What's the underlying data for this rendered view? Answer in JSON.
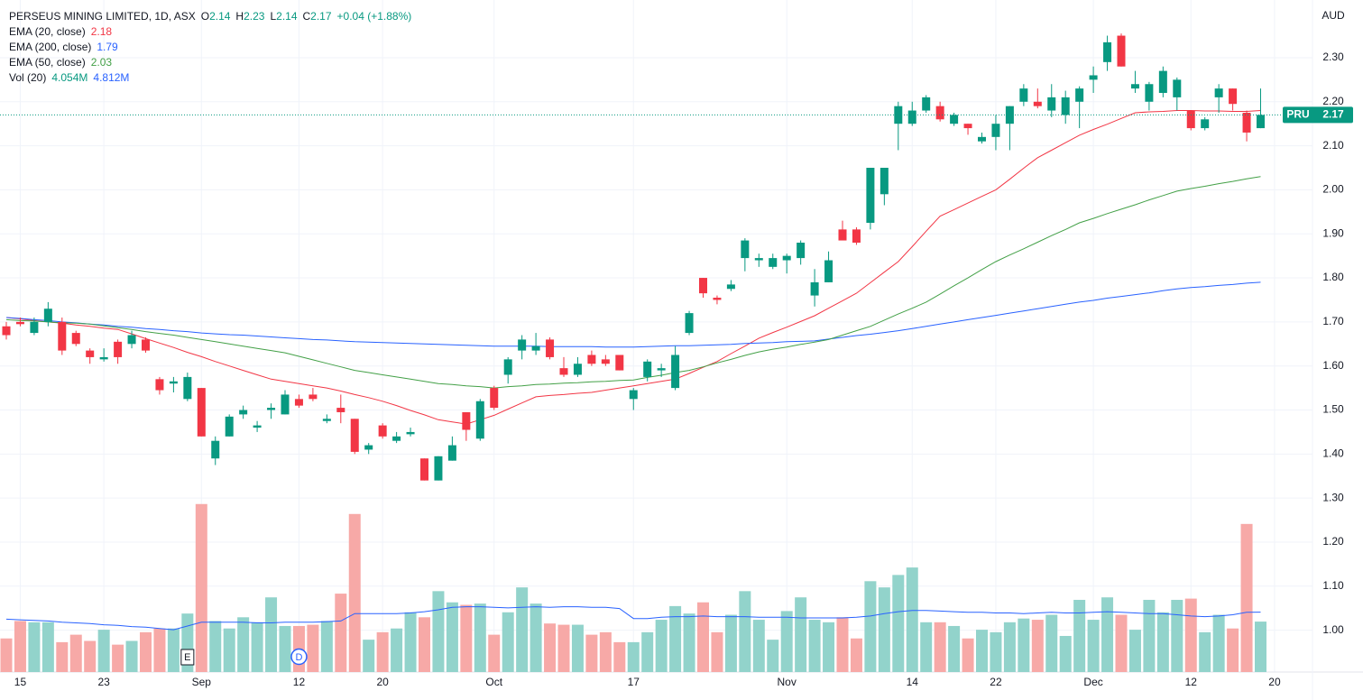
{
  "chart_data": {
    "type": "candlestick",
    "title": "PERSEUS MINING LIMITED, 1D, ASX",
    "ohlc_labels": [
      "O",
      "H",
      "L",
      "C"
    ],
    "change": "+0.04 (+1.88%)",
    "currency": "AUD",
    "symbol": "PRU",
    "up_color": "#089981",
    "down_color": "#f23645",
    "grid": true,
    "categories": [
      null,
      "15",
      null,
      null,
      null,
      null,
      null,
      "23",
      null,
      null,
      null,
      null,
      null,
      null,
      "Sep",
      null,
      null,
      null,
      null,
      null,
      null,
      "12",
      null,
      null,
      null,
      null,
      null,
      "20",
      null,
      null,
      null,
      null,
      null,
      null,
      null,
      "Oct",
      null,
      null,
      null,
      null,
      null,
      null,
      null,
      null,
      null,
      "17",
      null,
      null,
      null,
      null,
      null,
      null,
      null,
      null,
      null,
      null,
      "Nov",
      null,
      null,
      null,
      null,
      null,
      null,
      null,
      null,
      "14",
      null,
      null,
      null,
      null,
      null,
      "22",
      null,
      null,
      null,
      null,
      null,
      null,
      "Dec",
      null,
      null,
      null,
      null,
      null,
      null,
      "12",
      null,
      null,
      null,
      null,
      null,
      "20"
    ],
    "events": [
      null,
      null,
      null,
      null,
      null,
      null,
      null,
      null,
      null,
      null,
      null,
      null,
      null,
      "E",
      null,
      null,
      null,
      null,
      null,
      null,
      null,
      "D",
      null,
      null,
      null,
      null,
      null,
      null,
      null,
      null,
      null,
      null,
      null,
      null,
      null,
      null,
      null,
      null,
      null,
      null,
      null,
      null,
      null,
      null,
      null,
      null,
      null,
      null,
      null,
      null,
      null,
      null,
      null,
      null,
      null,
      null,
      null,
      null,
      null,
      null,
      null,
      null,
      null,
      null,
      null,
      null,
      null,
      null,
      null,
      null,
      null,
      null,
      null,
      null,
      null,
      null,
      null,
      null,
      null,
      null,
      null,
      null,
      null,
      null,
      null,
      null,
      null,
      null,
      null,
      null,
      null,
      null
    ],
    "open": [
      1.69,
      1.7,
      1.675,
      1.7,
      1.7,
      1.675,
      1.635,
      1.615,
      1.655,
      1.65,
      1.66,
      1.57,
      1.56,
      1.525,
      1.55,
      1.39,
      1.44,
      1.49,
      1.46,
      1.5,
      1.49,
      1.525,
      1.535,
      1.475,
      1.505,
      1.48,
      1.41,
      1.465,
      1.43,
      1.445,
      1.39,
      1.34,
      1.385,
      1.495,
      1.435,
      1.55,
      1.58,
      1.635,
      1.635,
      1.66,
      1.595,
      1.58,
      1.625,
      1.615,
      1.625,
      1.525,
      1.575,
      1.59,
      1.55,
      1.675,
      1.8,
      1.755,
      1.775,
      1.845,
      1.84,
      1.825,
      1.84,
      1.845,
      1.76,
      1.79,
      1.91,
      1.91,
      1.925,
      1.99,
      2.15,
      2.15,
      2.18,
      2.19,
      2.15,
      2.15,
      2.11,
      2.12,
      2.15,
      2.2,
      2.2,
      2.18,
      2.17,
      2.2,
      2.25,
      2.29,
      2.35,
      2.23,
      2.2,
      2.22,
      2.21,
      2.18,
      2.14,
      2.21,
      2.23,
      2.175,
      2.14,
      null
    ],
    "high": [
      1.7,
      1.71,
      1.71,
      1.745,
      1.71,
      1.68,
      1.64,
      1.64,
      1.66,
      1.68,
      1.665,
      1.575,
      1.575,
      1.585,
      1.55,
      1.44,
      1.49,
      1.51,
      1.475,
      1.515,
      1.545,
      1.535,
      1.55,
      1.49,
      1.535,
      1.48,
      1.425,
      1.47,
      1.45,
      1.46,
      1.39,
      1.395,
      1.44,
      1.495,
      1.525,
      1.555,
      1.62,
      1.67,
      1.675,
      1.665,
      1.62,
      1.62,
      1.635,
      1.625,
      1.625,
      1.55,
      1.615,
      1.605,
      1.645,
      1.725,
      1.8,
      1.76,
      1.795,
      1.89,
      1.855,
      1.855,
      1.855,
      1.885,
      1.82,
      1.86,
      1.93,
      1.915,
      2.05,
      2.05,
      2.2,
      2.2,
      2.215,
      2.2,
      2.175,
      2.15,
      2.13,
      2.17,
      2.19,
      2.24,
      2.23,
      2.24,
      2.225,
      2.235,
      2.28,
      2.35,
      2.355,
      2.27,
      2.245,
      2.28,
      2.255,
      2.18,
      2.165,
      2.24,
      2.23,
      2.18,
      2.23,
      null
    ],
    "low": [
      1.66,
      1.69,
      1.67,
      1.69,
      1.625,
      1.645,
      1.605,
      1.61,
      1.605,
      1.64,
      1.63,
      1.535,
      1.54,
      1.52,
      1.44,
      1.375,
      1.44,
      1.48,
      1.45,
      1.48,
      1.49,
      1.505,
      1.52,
      1.47,
      1.47,
      1.4,
      1.4,
      1.435,
      1.425,
      1.44,
      1.34,
      1.34,
      1.385,
      1.43,
      1.43,
      1.5,
      1.56,
      1.615,
      1.625,
      1.615,
      1.575,
      1.575,
      1.6,
      1.6,
      1.59,
      1.5,
      1.565,
      1.575,
      1.545,
      1.67,
      1.755,
      1.74,
      1.77,
      1.815,
      1.825,
      1.82,
      1.81,
      1.83,
      1.735,
      1.79,
      1.885,
      1.875,
      1.91,
      1.965,
      2.09,
      2.145,
      2.175,
      2.155,
      2.145,
      2.125,
      2.105,
      2.09,
      2.09,
      2.19,
      2.185,
      2.165,
      2.15,
      2.14,
      2.22,
      2.27,
      2.28,
      2.22,
      2.18,
      2.21,
      2.18,
      2.135,
      2.135,
      2.175,
      2.18,
      2.11,
      2.14,
      null
    ],
    "close": [
      1.67,
      1.695,
      1.7,
      1.73,
      1.635,
      1.65,
      1.62,
      1.62,
      1.62,
      1.67,
      1.635,
      1.545,
      1.565,
      1.575,
      1.44,
      1.43,
      1.485,
      1.5,
      1.465,
      1.505,
      1.535,
      1.51,
      1.525,
      1.48,
      1.495,
      1.405,
      1.42,
      1.44,
      1.44,
      1.45,
      1.34,
      1.395,
      1.42,
      1.455,
      1.52,
      1.505,
      1.615,
      1.66,
      1.645,
      1.62,
      1.58,
      1.605,
      1.605,
      1.605,
      1.59,
      1.545,
      1.61,
      1.595,
      1.625,
      1.72,
      1.765,
      1.75,
      1.785,
      1.885,
      1.845,
      1.845,
      1.85,
      1.88,
      1.79,
      1.84,
      1.885,
      1.88,
      2.05,
      2.05,
      2.19,
      2.18,
      2.21,
      2.16,
      2.17,
      2.14,
      2.12,
      2.15,
      2.19,
      2.23,
      2.19,
      2.21,
      2.21,
      2.23,
      2.26,
      2.335,
      2.28,
      2.24,
      2.24,
      2.27,
      2.25,
      2.14,
      2.16,
      2.23,
      2.195,
      2.13,
      2.17,
      null
    ],
    "series": [
      {
        "name": "EMA (20, close)",
        "color": "#f23645",
        "values": [
          1.71,
          1.707,
          1.703,
          1.7,
          1.697,
          1.693,
          1.69,
          1.686,
          1.683,
          1.673,
          1.662,
          1.652,
          1.642,
          1.631,
          1.621,
          1.61,
          1.6,
          1.59,
          1.58,
          1.57,
          1.565,
          1.56,
          1.555,
          1.55,
          1.543,
          1.535,
          1.528,
          1.52,
          1.51,
          1.499,
          1.489,
          1.478,
          1.473,
          1.468,
          1.478,
          1.488,
          1.502,
          1.516,
          1.53,
          1.533,
          1.535,
          1.538,
          1.54,
          1.545,
          1.55,
          1.555,
          1.56,
          1.565,
          1.57,
          1.583,
          1.597,
          1.61,
          1.628,
          1.645,
          1.663,
          1.676,
          1.688,
          1.701,
          1.714,
          1.731,
          1.748,
          1.765,
          1.789,
          1.813,
          1.837,
          1.871,
          1.906,
          1.94,
          1.955,
          1.97,
          1.985,
          2.0,
          2.024,
          2.049,
          2.073,
          2.09,
          2.107,
          2.124,
          2.137,
          2.149,
          2.162,
          2.175,
          2.177,
          2.178,
          2.18,
          2.18,
          2.179,
          2.179,
          2.178,
          2.178,
          2.18,
          null
        ]
      },
      {
        "name": "EMA (200, close)",
        "color": "#2962ff",
        "values": [
          1.71,
          1.708,
          1.705,
          1.703,
          1.7,
          1.698,
          1.695,
          1.693,
          1.69,
          1.688,
          1.685,
          1.683,
          1.68,
          1.678,
          1.675,
          1.673,
          1.671,
          1.67,
          1.668,
          1.666,
          1.664,
          1.662,
          1.66,
          1.659,
          1.657,
          1.655,
          1.654,
          1.653,
          1.652,
          1.651,
          1.65,
          1.649,
          1.648,
          1.647,
          1.646,
          1.645,
          1.645,
          1.645,
          1.645,
          1.644,
          1.644,
          1.644,
          1.644,
          1.643,
          1.643,
          1.643,
          1.644,
          1.645,
          1.646,
          1.646,
          1.647,
          1.648,
          1.649,
          1.651,
          1.652,
          1.653,
          1.655,
          1.656,
          1.657,
          1.661,
          1.665,
          1.669,
          1.672,
          1.676,
          1.68,
          1.685,
          1.69,
          1.695,
          1.7,
          1.705,
          1.71,
          1.715,
          1.72,
          1.725,
          1.73,
          1.735,
          1.74,
          1.745,
          1.749,
          1.754,
          1.758,
          1.762,
          1.766,
          1.771,
          1.775,
          1.778,
          1.78,
          1.783,
          1.785,
          1.788,
          1.79,
          null
        ]
      },
      {
        "name": "EMA (50, close)",
        "color": "#43a047",
        "values": [
          1.705,
          1.703,
          1.702,
          1.7,
          1.698,
          1.697,
          1.695,
          1.691,
          1.687,
          1.683,
          1.678,
          1.674,
          1.67,
          1.665,
          1.66,
          1.655,
          1.65,
          1.645,
          1.64,
          1.635,
          1.63,
          1.622,
          1.614,
          1.606,
          1.598,
          1.59,
          1.585,
          1.58,
          1.575,
          1.57,
          1.565,
          1.56,
          1.558,
          1.555,
          1.553,
          1.55,
          1.553,
          1.555,
          1.558,
          1.559,
          1.561,
          1.562,
          1.564,
          1.565,
          1.567,
          1.568,
          1.574,
          1.579,
          1.585,
          1.59,
          1.598,
          1.607,
          1.615,
          1.624,
          1.632,
          1.638,
          1.643,
          1.649,
          1.654,
          1.66,
          1.67,
          1.68,
          1.69,
          1.704,
          1.718,
          1.731,
          1.745,
          1.763,
          1.782,
          1.8,
          1.819,
          1.837,
          1.852,
          1.866,
          1.881,
          1.896,
          1.91,
          1.925,
          1.935,
          1.946,
          1.956,
          1.966,
          1.977,
          1.987,
          1.997,
          2.003,
          2.008,
          2.014,
          2.019,
          2.025,
          2.03,
          null
        ]
      }
    ],
    "volume": {
      "name": "Vol (20)",
      "legend_labels": [
        "4.054M",
        "4.812M"
      ],
      "up_color": "#92d3cb",
      "down_color": "#f7a9a7",
      "ma_color": "#2962ff",
      "values": [
        2.7,
        4.1,
        4.0,
        4.0,
        2.4,
        3.0,
        2.5,
        3.4,
        2.2,
        2.5,
        3.2,
        3.5,
        3.5,
        4.7,
        13.5,
        4.1,
        3.5,
        4.4,
        4.0,
        6.0,
        3.7,
        3.7,
        3.8,
        4.1,
        6.3,
        12.7,
        2.6,
        3.2,
        3.5,
        4.8,
        4.4,
        6.5,
        5.6,
        5.4,
        5.5,
        3.0,
        4.8,
        6.8,
        5.5,
        3.9,
        3.8,
        3.8,
        3.0,
        3.2,
        2.4,
        2.4,
        3.2,
        4.2,
        5.3,
        4.7,
        5.6,
        3.2,
        4.6,
        6.5,
        4.2,
        2.6,
        4.9,
        6.0,
        4.2,
        4.0,
        4.4,
        2.7,
        7.3,
        6.8,
        7.8,
        8.4,
        4.0,
        4.0,
        3.7,
        2.7,
        3.4,
        3.2,
        4.0,
        4.3,
        4.2,
        4.6,
        2.9,
        5.8,
        4.2,
        6.0,
        4.6,
        3.4,
        5.8,
        4.8,
        5.8,
        5.9,
        3.2,
        4.6,
        3.5,
        11.9,
        4.054,
        null
      ],
      "ma_values": [
        4.25,
        4.2,
        4.15,
        4.1,
        4.0,
        3.95,
        3.9,
        3.8,
        3.75,
        3.65,
        3.6,
        3.5,
        3.4,
        3.7,
        4.0,
        4.0,
        4.0,
        4.0,
        3.95,
        3.95,
        4.0,
        4.0,
        4.0,
        4.05,
        4.1,
        4.7,
        4.7,
        4.7,
        4.7,
        4.75,
        4.85,
        5.0,
        5.2,
        5.25,
        5.25,
        5.2,
        5.15,
        5.2,
        5.25,
        5.2,
        5.25,
        5.25,
        5.2,
        5.2,
        5.1,
        4.3,
        4.3,
        4.4,
        4.45,
        4.45,
        4.5,
        4.45,
        4.45,
        4.45,
        4.4,
        4.4,
        4.4,
        4.35,
        4.35,
        4.35,
        4.35,
        4.4,
        4.5,
        4.7,
        4.85,
        4.95,
        4.95,
        4.9,
        4.85,
        4.8,
        4.8,
        4.75,
        4.75,
        4.7,
        4.75,
        4.8,
        4.75,
        4.75,
        4.8,
        4.85,
        4.8,
        4.75,
        4.7,
        4.7,
        4.6,
        4.5,
        4.45,
        4.5,
        4.6,
        4.8,
        4.812,
        null
      ]
    },
    "ylim": [
      0.905,
      2.431
    ],
    "yticks": [
      {
        "value": 1.0,
        "label": "1.00"
      },
      {
        "value": 1.1,
        "label": "1.10"
      },
      {
        "value": 1.2,
        "label": "1.20"
      },
      {
        "value": 1.3,
        "label": "1.30"
      },
      {
        "value": 1.4,
        "label": "1.40"
      },
      {
        "value": 1.5,
        "label": "1.50"
      },
      {
        "value": 1.6,
        "label": "1.60"
      },
      {
        "value": 1.7,
        "label": "1.70"
      },
      {
        "value": 1.8,
        "label": "1.80"
      },
      {
        "value": 1.9,
        "label": "1.90"
      },
      {
        "value": 2.0,
        "label": "2.00"
      },
      {
        "value": 2.1,
        "label": "2.10"
      },
      {
        "value": 2.2,
        "label": "2.20"
      },
      {
        "value": 2.3,
        "label": "2.30"
      }
    ],
    "y2lim": [
      0,
      54
    ]
  }
}
